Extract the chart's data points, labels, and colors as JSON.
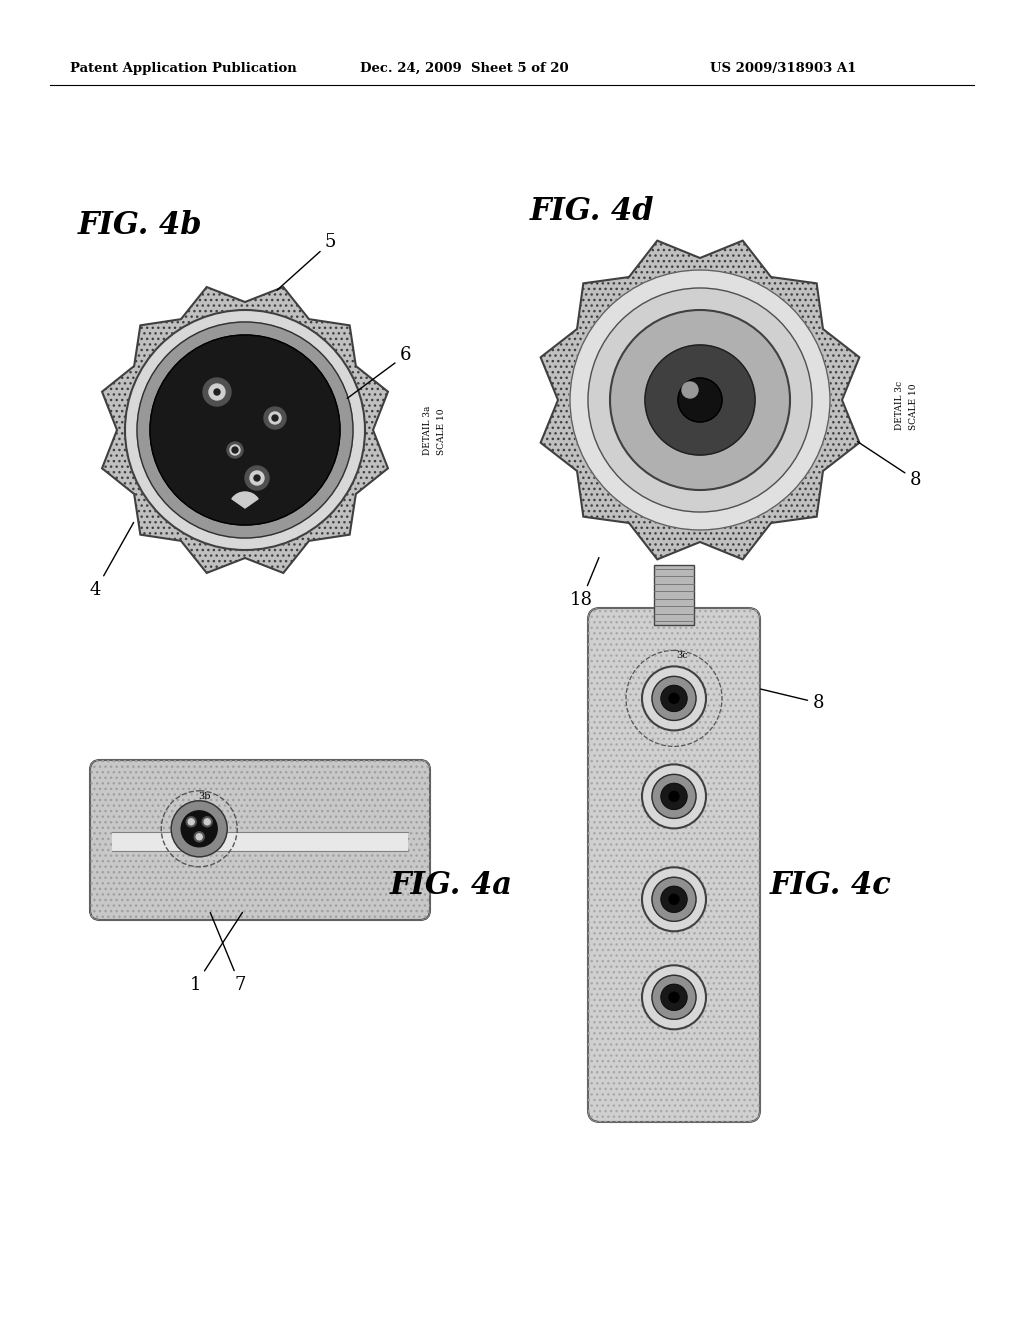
{
  "bg_color": "#ffffff",
  "header_text_left": "Patent Application Publication",
  "header_text_mid": "Dec. 24, 2009  Sheet 5 of 20",
  "header_text_right": "US 2009/318903 A1",
  "fig_4b_label": "FIG. 4b",
  "fig_4a_label": "FIG. 4a",
  "fig_4d_label": "FIG. 4d",
  "fig_4c_label": "FIG. 4c"
}
